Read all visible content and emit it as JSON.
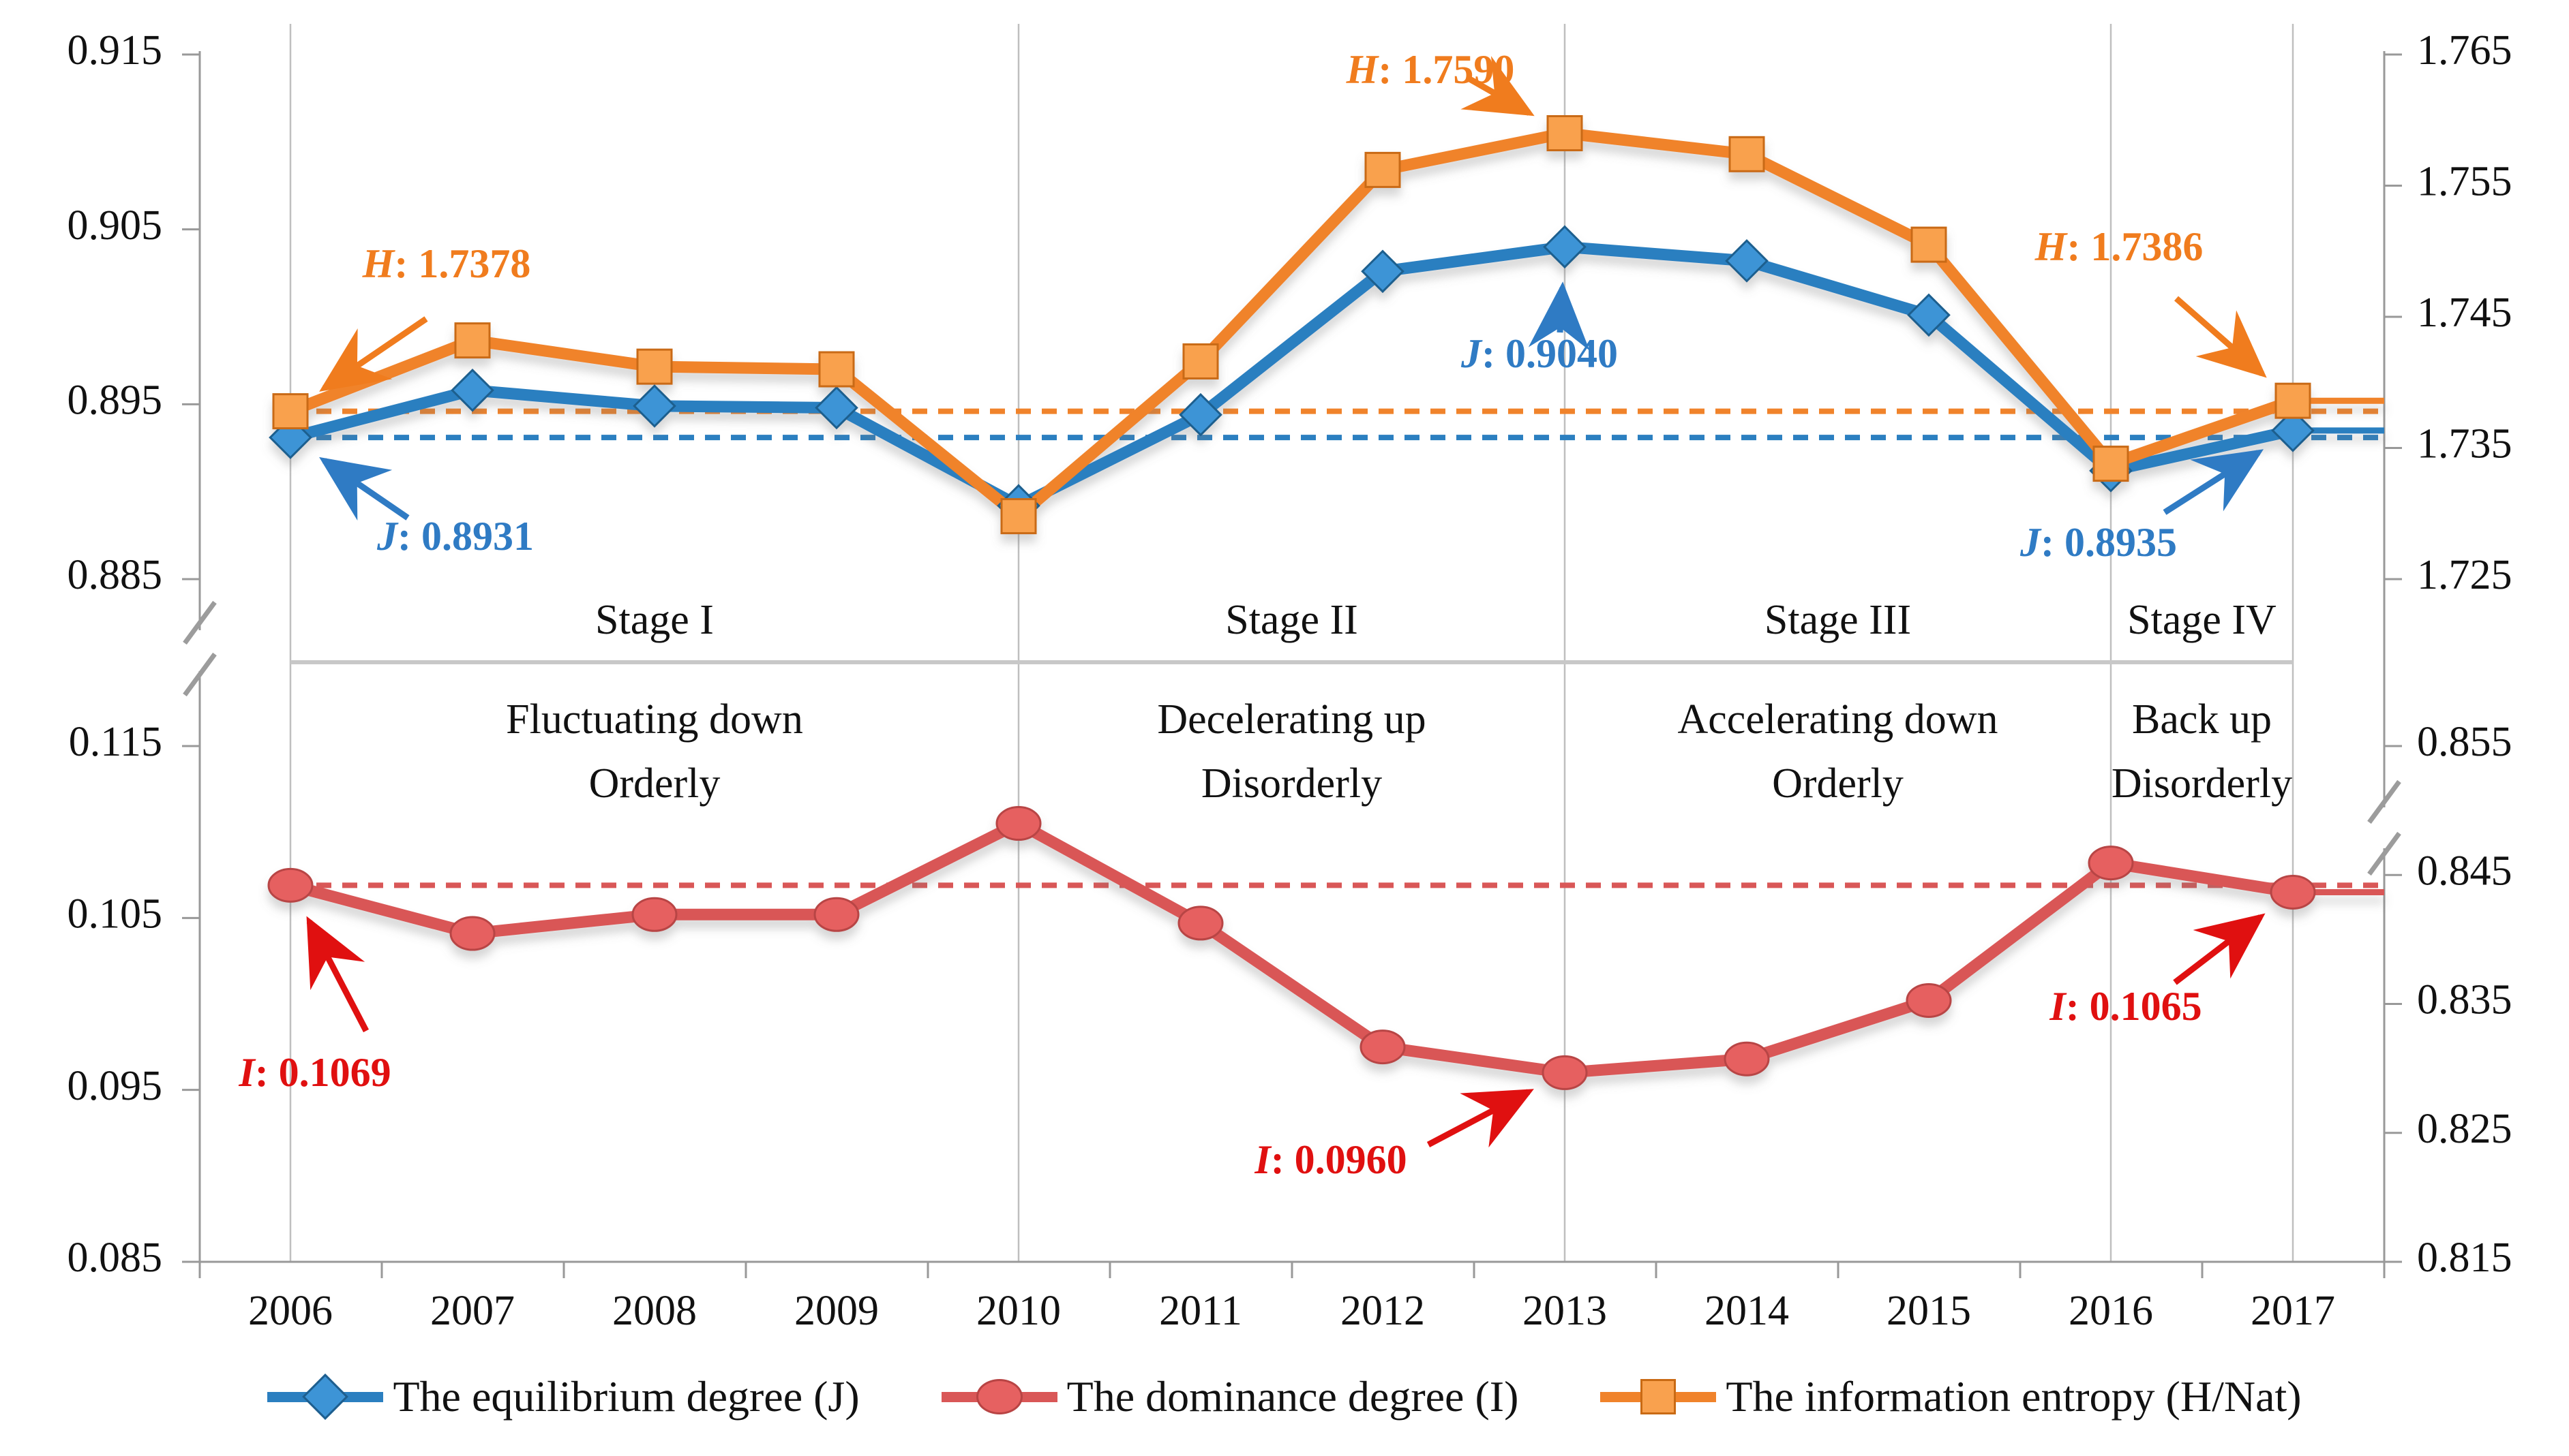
{
  "chart_data": {
    "type": "line",
    "x": [
      2006,
      2007,
      2008,
      2009,
      2010,
      2011,
      2012,
      2013,
      2014,
      2015,
      2016,
      2017
    ],
    "series": [
      {
        "name": "The equilibrium degree (J)",
        "axis": "J",
        "marker": "diamond",
        "values": [
          0.8931,
          0.8958,
          0.8949,
          0.8948,
          0.8892,
          0.8944,
          0.9026,
          0.904,
          0.9032,
          0.9001,
          0.8912,
          0.8935
        ]
      },
      {
        "name": "The information entropy (H/Nat)",
        "axis": "H",
        "marker": "square",
        "values": [
          1.7378,
          1.7432,
          1.7412,
          1.741,
          1.7298,
          1.7416,
          1.7562,
          1.759,
          1.7574,
          1.7505,
          1.7338,
          1.7386
        ]
      },
      {
        "name": "The dominance degree (I)",
        "axis": "I",
        "marker": "circle",
        "values": [
          0.1069,
          0.1041,
          0.1052,
          0.1052,
          0.1105,
          0.1047,
          0.0975,
          0.096,
          0.0968,
          0.1002,
          0.1082,
          0.1065
        ]
      }
    ],
    "baselines": {
      "J": 0.8931,
      "H": 1.7378,
      "I": 0.1069
    },
    "axes": {
      "top_left": {
        "min": 0.885,
        "max": 0.915,
        "tick_labels": [
          "0.915",
          "0.905",
          "0.895",
          "0.885"
        ]
      },
      "top_right": {
        "min": 1.725,
        "max": 1.765,
        "tick_labels": [
          "1.765",
          "1.755",
          "1.745",
          "1.735",
          "1.725"
        ]
      },
      "bottom_left": {
        "min": 0.085,
        "max": 0.115,
        "tick_labels": [
          "0.115",
          "0.105",
          "0.095",
          "0.085"
        ]
      },
      "bottom_right": {
        "min": 0.815,
        "max": 0.855,
        "tick_labels": [
          "0.855",
          "0.845",
          "0.835",
          "0.825",
          "0.815"
        ]
      }
    },
    "stages": [
      {
        "name": "Stage I",
        "desc_line1": "Fluctuating down",
        "desc_line2": "Orderly",
        "from": 2006,
        "to": 2010
      },
      {
        "name": "Stage II",
        "desc_line1": "Decelerating up",
        "desc_line2": "Disorderly",
        "from": 2010,
        "to": 2013
      },
      {
        "name": "Stage III",
        "desc_line1": "Accelerating down",
        "desc_line2": "Orderly",
        "from": 2013,
        "to": 2016
      },
      {
        "name": "Stage IV",
        "desc_line1": "Back up",
        "desc_line2": "Disorderly",
        "from": 2016,
        "to": 2017
      }
    ],
    "annotations": [
      {
        "letter": "H",
        "value": "1.7378",
        "series": "H",
        "year": 2006
      },
      {
        "letter": "J",
        "value": "0.8931",
        "series": "J",
        "year": 2006
      },
      {
        "letter": "H",
        "value": "1.7590",
        "series": "H",
        "year": 2013
      },
      {
        "letter": "J",
        "value": "0.9040",
        "series": "J",
        "year": 2013
      },
      {
        "letter": "H",
        "value": "1.7386",
        "series": "H",
        "year": 2017
      },
      {
        "letter": "J",
        "value": "0.8935",
        "series": "J",
        "year": 2017
      },
      {
        "letter": "I",
        "value": "0.1069",
        "series": "I",
        "year": 2006
      },
      {
        "letter": "I",
        "value": "0.0960",
        "series": "I",
        "year": 2013
      },
      {
        "letter": "I",
        "value": "0.1065",
        "series": "I",
        "year": 2017
      }
    ],
    "colors": {
      "equilibrium": "#2B7FC0",
      "entropy": "#F0832B",
      "dominance": "#D95757",
      "annotation_j": "#2F7BC4",
      "annotation_h": "#F07C1E",
      "annotation_i": "#E01010",
      "grid": "#BFBFBF",
      "axis": "#999999"
    },
    "legend_position": "bottom",
    "grid": "vertical-stage-boundaries-only"
  },
  "legend": {
    "items": [
      {
        "label": "The equilibrium degree (J)",
        "marker": "blue-diamond"
      },
      {
        "label": "The dominance degree (I)",
        "marker": "red-circle"
      },
      {
        "label": "The information entropy (H/Nat)",
        "marker": "orange-square"
      }
    ]
  }
}
